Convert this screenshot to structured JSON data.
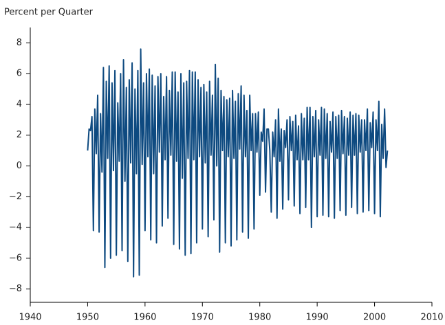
{
  "chart_data": {
    "type": "line",
    "y_label": "Percent per Quarter",
    "x": [
      1950,
      1950.25,
      1950.5,
      1950.75,
      1951,
      1951.25,
      1951.5,
      1951.75,
      1952,
      1952.25,
      1952.5,
      1952.75,
      1953,
      1953.25,
      1953.5,
      1953.75,
      1954,
      1954.25,
      1954.5,
      1954.75,
      1955,
      1955.25,
      1955.5,
      1955.75,
      1956,
      1956.25,
      1956.5,
      1956.75,
      1957,
      1957.25,
      1957.5,
      1957.75,
      1958,
      1958.25,
      1958.5,
      1958.75,
      1959,
      1959.25,
      1959.5,
      1959.75,
      1960,
      1960.25,
      1960.5,
      1960.75,
      1961,
      1961.25,
      1961.5,
      1961.75,
      1962,
      1962.25,
      1962.5,
      1962.75,
      1963,
      1963.25,
      1963.5,
      1963.75,
      1964,
      1964.25,
      1964.5,
      1964.75,
      1965,
      1965.25,
      1965.5,
      1965.75,
      1966,
      1966.25,
      1966.5,
      1966.75,
      1967,
      1967.25,
      1967.5,
      1967.75,
      1968,
      1968.25,
      1968.5,
      1968.75,
      1969,
      1969.25,
      1969.5,
      1969.75,
      1970,
      1970.25,
      1970.5,
      1970.75,
      1971,
      1971.25,
      1971.5,
      1971.75,
      1972,
      1972.25,
      1972.5,
      1972.75,
      1973,
      1973.25,
      1973.5,
      1973.75,
      1974,
      1974.25,
      1974.5,
      1974.75,
      1975,
      1975.25,
      1975.5,
      1975.75,
      1976,
      1976.25,
      1976.5,
      1976.75,
      1977,
      1977.25,
      1977.5,
      1977.75,
      1978,
      1978.25,
      1978.5,
      1978.75,
      1979,
      1979.25,
      1979.5,
      1979.75,
      1980,
      1980.25,
      1980.5,
      1980.75,
      1981,
      1981.25,
      1981.5,
      1981.75,
      1982,
      1982.25,
      1982.5,
      1982.75,
      1983,
      1983.25,
      1983.5,
      1983.75,
      1984,
      1984.25,
      1984.5,
      1984.75,
      1985,
      1985.25,
      1985.5,
      1985.75,
      1986,
      1986.25,
      1986.5,
      1986.75,
      1987,
      1987.25,
      1987.5,
      1987.75,
      1988,
      1988.25,
      1988.5,
      1988.75,
      1989,
      1989.25,
      1989.5,
      1989.75,
      1990,
      1990.25,
      1990.5,
      1990.75,
      1991,
      1991.25,
      1991.5,
      1991.75,
      1992,
      1992.25,
      1992.5,
      1992.75,
      1993,
      1993.25,
      1993.5,
      1993.75,
      1994,
      1994.25,
      1994.5,
      1994.75,
      1995,
      1995.25,
      1995.5,
      1995.75,
      1996,
      1996.25,
      1996.5,
      1996.75,
      1997,
      1997.25,
      1997.5,
      1997.75,
      1998,
      1998.25,
      1998.5,
      1998.75,
      1999,
      1999.25,
      1999.5,
      1999.75,
      2000,
      2000.25,
      2000.5,
      2000.75,
      2001,
      2001.25,
      2001.5,
      2001.75,
      2002,
      2002.25
    ],
    "series": [
      {
        "color": "#0e4a80",
        "values": [
          1.0,
          2.4,
          2.3,
          3.2,
          -4.2,
          3.7,
          0.8,
          4.6,
          -4.3,
          3.4,
          -0.4,
          6.4,
          -6.6,
          5.5,
          0.5,
          6.5,
          -6.0,
          5.4,
          -0.3,
          6.2,
          -5.8,
          4.1,
          0.3,
          6.0,
          -5.5,
          6.9,
          -1.0,
          5.1,
          -6.2,
          5.6,
          0.2,
          6.7,
          -7.2,
          5.0,
          -0.5,
          6.2,
          -7.1,
          7.6,
          0.1,
          5.4,
          -4.2,
          6.0,
          0.6,
          6.3,
          -4.8,
          5.9,
          -0.5,
          5.2,
          -5.0,
          5.8,
          0.9,
          6.0,
          -3.9,
          4.5,
          0.4,
          5.8,
          -3.4,
          4.9,
          0.7,
          6.1,
          -5.1,
          6.1,
          0.3,
          4.8,
          -5.4,
          6.0,
          -0.8,
          5.4,
          -5.8,
          5.5,
          0.5,
          6.2,
          -5.7,
          6.1,
          0.4,
          6.1,
          -5.0,
          5.6,
          0.6,
          5.1,
          -4.1,
          5.3,
          0.2,
          4.8,
          -4.6,
          5.5,
          0.7,
          4.6,
          -3.5,
          6.6,
          0.0,
          5.7,
          -5.6,
          4.9,
          1.0,
          4.5,
          -5.0,
          4.3,
          0.6,
          4.4,
          -5.2,
          4.9,
          0.5,
          4.2,
          -4.8,
          4.7,
          1.1,
          5.2,
          -4.3,
          4.6,
          0.6,
          3.6,
          -4.7,
          4.6,
          1.0,
          3.4,
          -4.1,
          3.4,
          0.9,
          3.5,
          -1.9,
          2.2,
          1.6,
          3.7,
          -1.7,
          2.4,
          2.4,
          1.0,
          -3.0,
          2.2,
          0.6,
          3.0,
          -3.4,
          3.7,
          0.3,
          2.4,
          -2.8,
          2.3,
          1.2,
          3.0,
          -2.2,
          3.2,
          1.0,
          2.9,
          -2.6,
          3.3,
          0.4,
          2.6,
          -3.1,
          3.4,
          0.4,
          3.1,
          -2.7,
          3.8,
          0.4,
          3.8,
          -4.0,
          3.2,
          0.6,
          3.6,
          -3.3,
          3.0,
          0.7,
          3.8,
          -3.2,
          3.7,
          0.5,
          3.4,
          -3.3,
          2.9,
          0.9,
          3.5,
          -3.4,
          3.2,
          0.5,
          3.3,
          -2.9,
          3.6,
          0.8,
          3.2,
          -3.2,
          3.1,
          0.7,
          3.5,
          -2.7,
          3.3,
          0.7,
          3.4,
          -3.1,
          3.3,
          0.9,
          3.0,
          -3.0,
          3.0,
          1.0,
          3.7,
          -2.9,
          2.8,
          1.2,
          3.5,
          -3.1,
          3.0,
          1.0,
          4.2,
          -3.3,
          2.7,
          0.5,
          3.7,
          -0.1,
          1.0
        ]
      }
    ],
    "xlim": [
      1940,
      2010
    ],
    "xticks": [
      1940,
      1950,
      1960,
      1970,
      1980,
      1990,
      2000,
      2010
    ],
    "ylim": [
      -9,
      9
    ],
    "yticks": [
      {
        "value": -8,
        "label": "−8"
      },
      {
        "value": -6,
        "label": "−6"
      },
      {
        "value": -4,
        "label": "−4"
      },
      {
        "value": -2,
        "label": "−2"
      },
      0,
      2,
      4,
      6,
      8
    ]
  }
}
